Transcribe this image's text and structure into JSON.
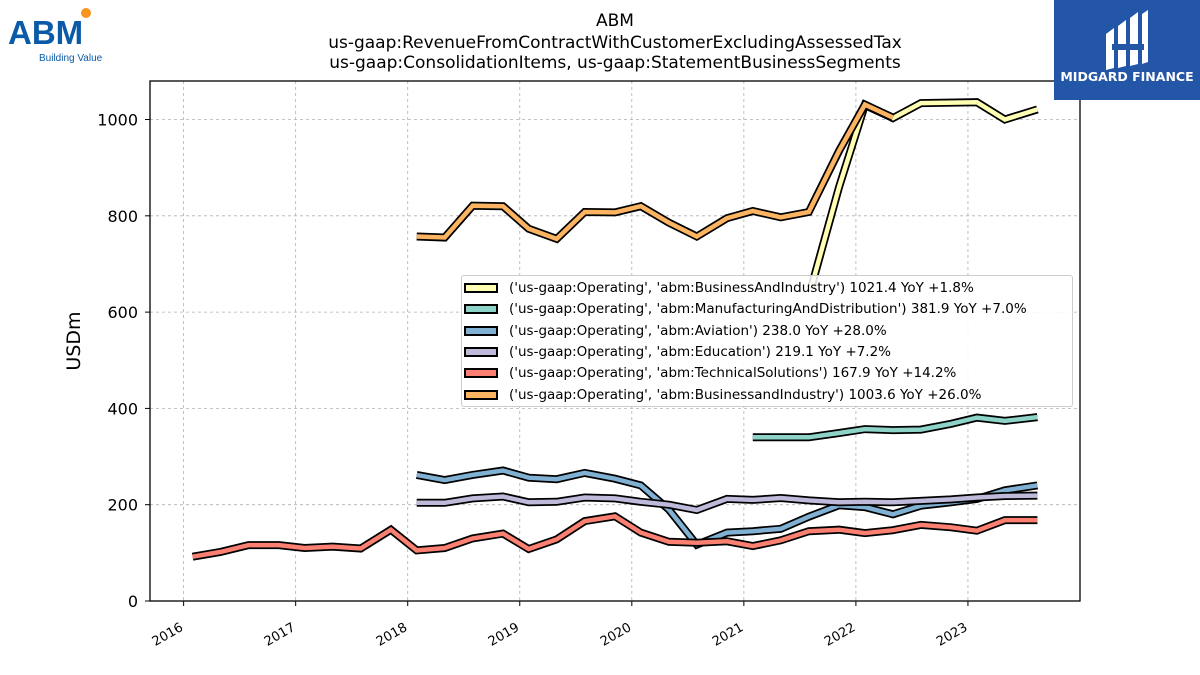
{
  "titles": [
    "ABM",
    "us-gaap:RevenueFromContractWithCustomerExcludingAssessedTax",
    "us-gaap:ConsolidationItems, us-gaap:StatementBusinessSegments"
  ],
  "logos": {
    "abm_text": "ABM",
    "abm_tagline": "Building Value",
    "abm_dot_color": "#f7941d",
    "abm_color": "#0a5aa8",
    "midgard_text": "MIDGARD FINANCE",
    "midgard_bg": "#2456a8"
  },
  "chart_data": {
    "type": "line",
    "title": "ABM",
    "ylabel": "USDm",
    "xlabel": "",
    "ylim": [
      0,
      1080
    ],
    "xlim": [
      2015.7,
      2024.0
    ],
    "yticks": [
      0,
      200,
      400,
      600,
      800,
      1000
    ],
    "xticks": [
      "2016",
      "2017",
      "2018",
      "2019",
      "2020",
      "2021",
      "2022",
      "2023"
    ],
    "grid": true,
    "legend_position": "center-right",
    "series": [
      {
        "name": "('us-gaap:Operating', 'abm:BusinessAndIndustry') 1021.4 YoY +1.8%",
        "color": "#ffffb3",
        "points": [
          [
            2021.6,
            650
          ],
          [
            2021.85,
            860
          ],
          [
            2022.08,
            1030
          ],
          [
            2022.33,
            1003
          ],
          [
            2022.58,
            1034
          ],
          [
            2023.08,
            1036
          ],
          [
            2023.33,
            1000
          ],
          [
            2023.62,
            1021
          ]
        ]
      },
      {
        "name": "('us-gaap:Operating', 'abm:ManufacturingAndDistribution') 381.9 YoY +7.0%",
        "color": "#8dd3c7",
        "points": [
          [
            2021.08,
            340
          ],
          [
            2021.33,
            340
          ],
          [
            2021.58,
            340
          ],
          [
            2021.85,
            349
          ],
          [
            2022.08,
            357
          ],
          [
            2022.33,
            355
          ],
          [
            2022.58,
            356
          ],
          [
            2022.85,
            368
          ],
          [
            2023.08,
            381
          ],
          [
            2023.33,
            374
          ],
          [
            2023.62,
            382
          ]
        ]
      },
      {
        "name": "('us-gaap:Operating', 'abm:Aviation') 238.0 YoY +28.0%",
        "color": "#80b1d3",
        "points": [
          [
            2018.08,
            262
          ],
          [
            2018.33,
            251
          ],
          [
            2018.58,
            262
          ],
          [
            2018.85,
            271
          ],
          [
            2019.08,
            256
          ],
          [
            2019.33,
            253
          ],
          [
            2019.58,
            266
          ],
          [
            2019.85,
            254
          ],
          [
            2020.08,
            240
          ],
          [
            2020.33,
            190
          ],
          [
            2020.58,
            117
          ],
          [
            2020.85,
            142
          ],
          [
            2021.08,
            145
          ],
          [
            2021.33,
            150
          ],
          [
            2021.58,
            175
          ],
          [
            2021.85,
            199
          ],
          [
            2022.08,
            195
          ],
          [
            2022.33,
            180
          ],
          [
            2022.58,
            198
          ],
          [
            2022.85,
            205
          ],
          [
            2023.08,
            212
          ],
          [
            2023.33,
            230
          ],
          [
            2023.62,
            240
          ]
        ]
      },
      {
        "name": "('us-gaap:Operating', 'abm:Education') 219.1 YoY +7.2%",
        "color": "#bebada",
        "points": [
          [
            2018.08,
            204
          ],
          [
            2018.33,
            204
          ],
          [
            2018.58,
            213
          ],
          [
            2018.85,
            217
          ],
          [
            2019.08,
            205
          ],
          [
            2019.33,
            206
          ],
          [
            2019.58,
            215
          ],
          [
            2019.85,
            213
          ],
          [
            2020.08,
            206
          ],
          [
            2020.33,
            200
          ],
          [
            2020.58,
            189
          ],
          [
            2020.85,
            212
          ],
          [
            2021.08,
            210
          ],
          [
            2021.33,
            214
          ],
          [
            2021.58,
            209
          ],
          [
            2021.85,
            205
          ],
          [
            2022.08,
            206
          ],
          [
            2022.33,
            205
          ],
          [
            2022.58,
            208
          ],
          [
            2022.85,
            211
          ],
          [
            2023.08,
            215
          ],
          [
            2023.33,
            218
          ],
          [
            2023.62,
            219
          ]
        ]
      },
      {
        "name": "('us-gaap:Operating', 'abm:TechnicalSolutions') 167.9 YoY +14.2%",
        "color": "#fb8072",
        "points": [
          [
            2016.08,
            92
          ],
          [
            2016.33,
            102
          ],
          [
            2016.58,
            116
          ],
          [
            2016.85,
            116
          ],
          [
            2017.08,
            110
          ],
          [
            2017.33,
            113
          ],
          [
            2017.58,
            109
          ],
          [
            2017.85,
            148
          ],
          [
            2018.08,
            105
          ],
          [
            2018.33,
            110
          ],
          [
            2018.58,
            130
          ],
          [
            2018.85,
            140
          ],
          [
            2019.08,
            108
          ],
          [
            2019.33,
            128
          ],
          [
            2019.58,
            166
          ],
          [
            2019.85,
            176
          ],
          [
            2020.08,
            142
          ],
          [
            2020.33,
            123
          ],
          [
            2020.58,
            121
          ],
          [
            2020.85,
            124
          ],
          [
            2021.08,
            114
          ],
          [
            2021.33,
            126
          ],
          [
            2021.58,
            145
          ],
          [
            2021.85,
            148
          ],
          [
            2022.08,
            141
          ],
          [
            2022.33,
            147
          ],
          [
            2022.58,
            158
          ],
          [
            2022.85,
            153
          ],
          [
            2023.08,
            146
          ],
          [
            2023.33,
            168
          ],
          [
            2023.62,
            168
          ]
        ]
      },
      {
        "name": "('us-gaap:Operating', 'abm:BusinessandIndustry') 1003.6 YoY +26.0%",
        "color": "#fdb462",
        "points": [
          [
            2018.08,
            757
          ],
          [
            2018.33,
            755
          ],
          [
            2018.58,
            821
          ],
          [
            2018.85,
            820
          ],
          [
            2019.08,
            773
          ],
          [
            2019.33,
            752
          ],
          [
            2019.58,
            808
          ],
          [
            2019.85,
            807
          ],
          [
            2020.08,
            820
          ],
          [
            2020.33,
            786
          ],
          [
            2020.58,
            757
          ],
          [
            2020.85,
            795
          ],
          [
            2021.08,
            810
          ],
          [
            2021.33,
            797
          ],
          [
            2021.58,
            808
          ],
          [
            2021.85,
            935
          ],
          [
            2022.08,
            1031
          ],
          [
            2022.33,
            1004
          ]
        ]
      }
    ]
  }
}
